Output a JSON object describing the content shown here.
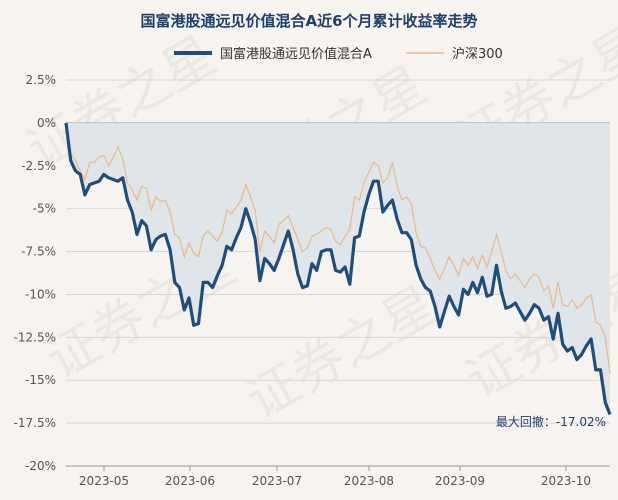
{
  "chart_data": {
    "type": "line",
    "title": "国富港股通远见价值混合A近6个月累计收益率走势",
    "xlabel": "",
    "ylabel": "",
    "ylim": [
      -20,
      2.5
    ],
    "yticks": [
      2.5,
      0,
      -2.5,
      -5,
      -7.5,
      -10,
      -12.5,
      -15,
      -17.5,
      -20
    ],
    "ytick_labels": [
      "2.5%",
      "0%",
      "-2.5%",
      "-5%",
      "-7.5%",
      "-10%",
      "-12.5%",
      "-15%",
      "-17.5%",
      "-20%"
    ],
    "xticks": [
      "2023-05",
      "2023-06",
      "2023-07",
      "2023-08",
      "2023-09",
      "2023-10"
    ],
    "grid": true,
    "legend": "top-center",
    "annotation": "最大回撤：-17.02%",
    "colors": {
      "fund": "#1f4e7a",
      "index": "#e8b98a",
      "area": "#dde3e8",
      "background": "#f7f3ee"
    },
    "series": [
      {
        "name": "国富港股通远见价值混合A",
        "values": [
          0.0,
          -2.2,
          -2.8,
          -3.0,
          -4.2,
          -3.6,
          -3.5,
          -3.4,
          -3.0,
          -3.2,
          -3.3,
          -3.4,
          -3.2,
          -4.5,
          -5.2,
          -6.5,
          -5.7,
          -6.0,
          -7.4,
          -6.8,
          -6.6,
          -6.5,
          -7.4,
          -9.3,
          -9.6,
          -10.9,
          -10.2,
          -11.8,
          -11.7,
          -9.3,
          -9.3,
          -9.6,
          -8.9,
          -8.3,
          -7.2,
          -7.4,
          -6.7,
          -6.1,
          -5.0,
          -5.8,
          -6.8,
          -9.2,
          -7.9,
          -8.2,
          -8.6,
          -7.9,
          -7.1,
          -6.3,
          -7.4,
          -8.8,
          -9.6,
          -9.5,
          -8.2,
          -8.6,
          -7.5,
          -7.4,
          -7.4,
          -8.6,
          -8.7,
          -8.4,
          -9.4,
          -6.7,
          -6.6,
          -5.2,
          -4.2,
          -3.4,
          -3.4,
          -5.2,
          -4.8,
          -4.5,
          -5.6,
          -6.4,
          -6.4,
          -6.8,
          -8.3,
          -9.1,
          -9.6,
          -9.8,
          -10.7,
          -11.9,
          -11.0,
          -10.1,
          -10.7,
          -11.2,
          -9.7,
          -10.0,
          -9.3,
          -9.9,
          -9.0,
          -10.1,
          -10.0,
          -8.3,
          -9.8,
          -10.8,
          -10.7,
          -10.5,
          -11.0,
          -11.5,
          -11.1,
          -10.6,
          -10.8,
          -11.5,
          -11.3,
          -12.6,
          -11.1,
          -12.9,
          -13.3,
          -13.1,
          -13.8,
          -13.5,
          -13.0,
          -12.6,
          -14.4,
          -14.4,
          -16.3,
          -17.0
        ]
      },
      {
        "name": "沪深300",
        "values": [
          0.0,
          -1.8,
          -2.2,
          -2.8,
          -3.3,
          -2.3,
          -2.3,
          -2.0,
          -1.9,
          -2.5,
          -2.0,
          -1.4,
          -2.1,
          -3.5,
          -3.9,
          -4.5,
          -3.7,
          -3.8,
          -5.1,
          -4.3,
          -4.6,
          -4.5,
          -5.2,
          -6.5,
          -6.7,
          -7.8,
          -7.0,
          -7.6,
          -7.8,
          -6.6,
          -6.3,
          -6.6,
          -6.9,
          -6.4,
          -5.1,
          -5.3,
          -4.9,
          -4.5,
          -3.6,
          -4.3,
          -5.1,
          -7.5,
          -6.3,
          -6.6,
          -7.0,
          -5.9,
          -5.7,
          -5.4,
          -6.1,
          -6.8,
          -7.5,
          -7.3,
          -6.6,
          -6.5,
          -6.3,
          -6.1,
          -6.2,
          -6.9,
          -7.1,
          -6.6,
          -6.2,
          -4.3,
          -4.5,
          -3.5,
          -2.9,
          -2.3,
          -2.5,
          -3.5,
          -3.2,
          -2.3,
          -3.7,
          -4.5,
          -4.3,
          -4.7,
          -6.4,
          -7.2,
          -7.3,
          -7.9,
          -8.6,
          -9.1,
          -8.5,
          -7.8,
          -8.3,
          -8.9,
          -7.9,
          -8.3,
          -7.8,
          -8.5,
          -7.7,
          -8.4,
          -7.5,
          -6.5,
          -7.5,
          -8.6,
          -9.1,
          -8.8,
          -9.2,
          -9.6,
          -9.1,
          -8.8,
          -9.0,
          -9.8,
          -9.5,
          -10.8,
          -9.3,
          -10.6,
          -10.7,
          -10.3,
          -10.8,
          -10.6,
          -10.2,
          -10.0,
          -11.6,
          -11.8,
          -12.5,
          -14.6
        ]
      }
    ]
  }
}
